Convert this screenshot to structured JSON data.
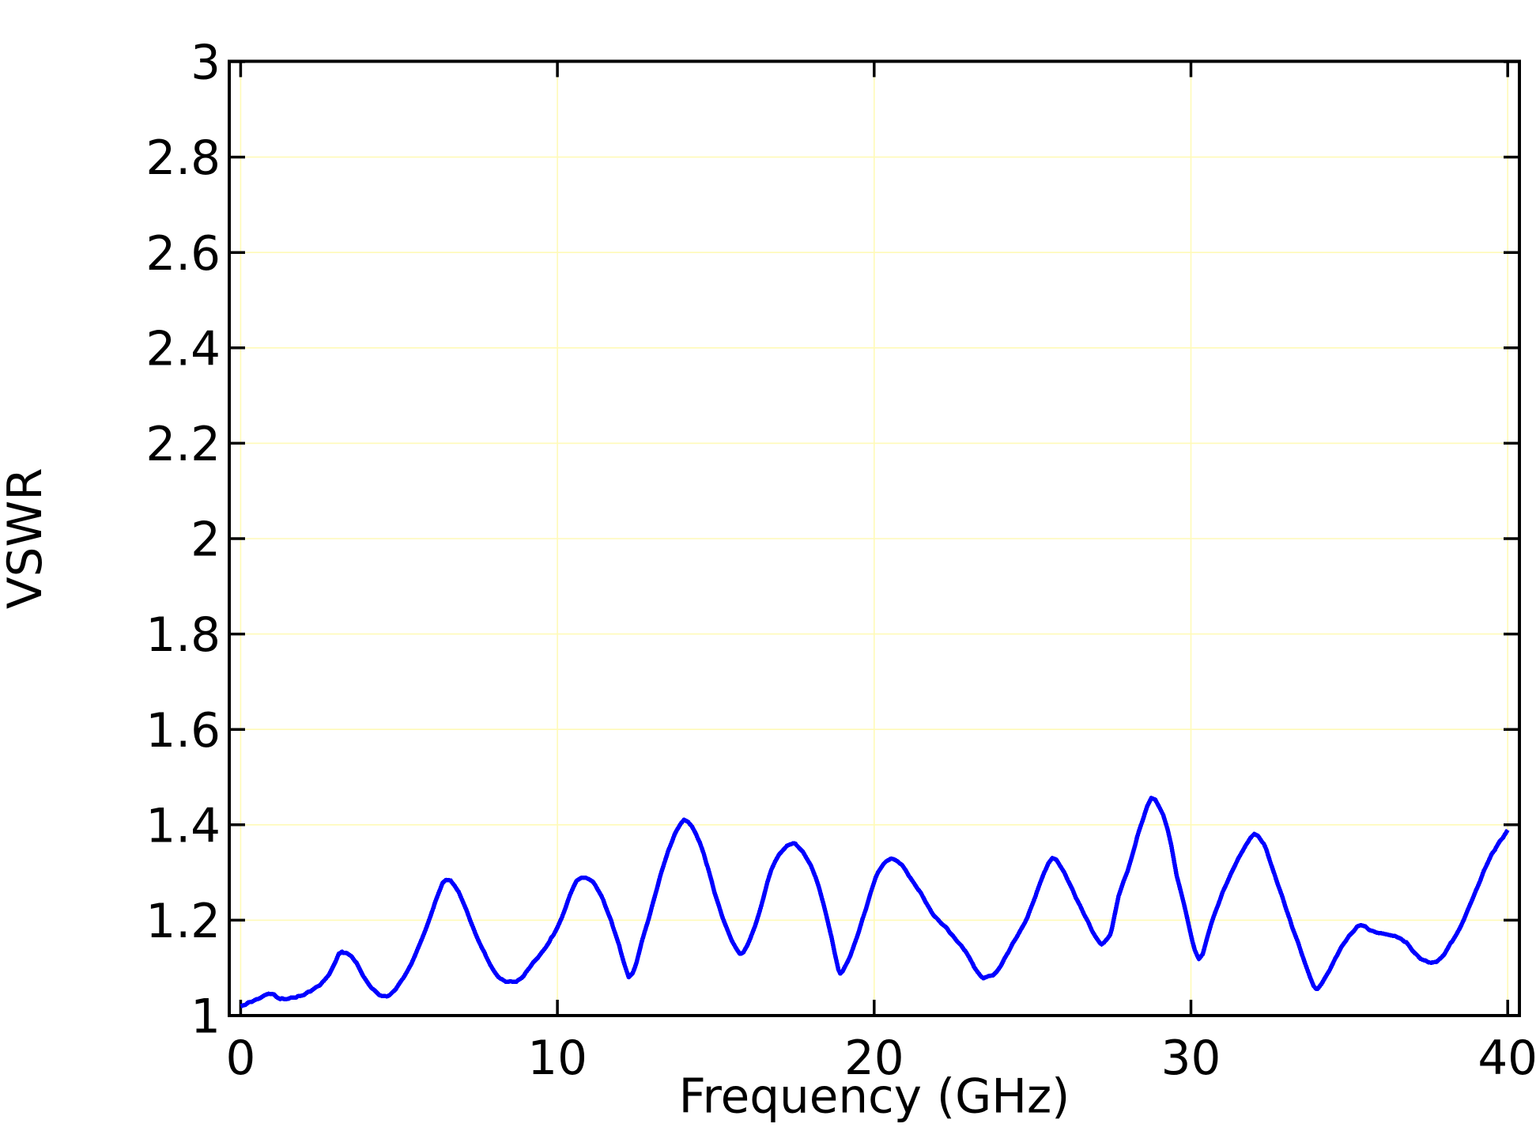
{
  "figure": {
    "kind": "line-chart",
    "background": "#ffffff"
  },
  "chart_data": {
    "type": "line",
    "title": "",
    "xlabel": "Frequency (GHz)",
    "ylabel": "VSWR",
    "x_ticks": [
      0,
      10,
      20,
      30,
      40
    ],
    "y_ticks": [
      1,
      1.2,
      1.4,
      1.6,
      1.8,
      2,
      2.2,
      2.4,
      2.6,
      2.8,
      3
    ],
    "x_tick_labels": [
      "0",
      "10",
      "20",
      "30",
      "40"
    ],
    "y_tick_labels": [
      "1",
      "1.2",
      "1.4",
      "1.6",
      "1.8",
      "2",
      "2.2",
      "2.4",
      "2.6",
      "2.8",
      "3"
    ],
    "xlim": [
      -0.36,
      40.37
    ],
    "ylim": [
      1,
      3
    ],
    "grid": true,
    "legend": false,
    "colors": {
      "line": "#0000ff",
      "grid": "#fffab8",
      "axis": "#000000",
      "text": "#000000"
    },
    "series": [
      {
        "name": "VSWR",
        "x": [
          0.0,
          0.15,
          0.35,
          0.55,
          0.75,
          0.92,
          1.05,
          1.18,
          1.3,
          1.45,
          1.6,
          1.8,
          2.0,
          2.2,
          2.4,
          2.6,
          2.8,
          2.95,
          3.1,
          3.2,
          3.35,
          3.5,
          3.65,
          3.85,
          4.05,
          4.25,
          4.47,
          4.7,
          4.9,
          5.1,
          5.35,
          5.6,
          5.85,
          6.1,
          6.3,
          6.48,
          6.65,
          6.85,
          7.1,
          7.4,
          7.7,
          7.95,
          8.2,
          8.43,
          8.7,
          8.95,
          9.2,
          9.5,
          9.8,
          10.1,
          10.4,
          10.6,
          10.78,
          11.0,
          11.2,
          11.45,
          11.7,
          11.95,
          12.1,
          12.27,
          12.45,
          12.65,
          12.9,
          13.15,
          13.4,
          13.7,
          13.9,
          14.02,
          14.2,
          14.45,
          14.7,
          14.95,
          15.2,
          15.5,
          15.81,
          16.1,
          16.4,
          16.72,
          17.0,
          17.25,
          17.45,
          17.65,
          17.9,
          18.15,
          18.4,
          18.65,
          18.93,
          19.15,
          19.45,
          19.75,
          20.05,
          20.3,
          20.53,
          20.8,
          21.1,
          21.45,
          21.8,
          22.3,
          22.85,
          23.15,
          23.45,
          23.75,
          24.1,
          24.5,
          24.85,
          25.1,
          25.4,
          25.64,
          25.9,
          26.15,
          26.4,
          26.75,
          27.0,
          27.18,
          27.45,
          27.72,
          28.05,
          28.3,
          28.55,
          28.77,
          29.0,
          29.28,
          29.55,
          29.82,
          30.05,
          30.26,
          30.65,
          31.0,
          31.25,
          31.5,
          31.8,
          32.02,
          32.3,
          32.6,
          32.9,
          33.2,
          33.48,
          33.73,
          33.96,
          34.25,
          34.56,
          34.85,
          35.1,
          35.36,
          35.65,
          36.0,
          36.45,
          36.8,
          37.1,
          37.4,
          37.6,
          37.9,
          38.2,
          38.5,
          38.8,
          39.05,
          39.3,
          39.6,
          39.85,
          40.0
        ],
        "y": [
          1.018,
          1.022,
          1.029,
          1.035,
          1.041,
          1.0455,
          1.0435,
          1.038,
          1.0355,
          1.035,
          1.0365,
          1.04,
          1.0445,
          1.051,
          1.059,
          1.071,
          1.088,
          1.105,
          1.129,
          1.1335,
          1.132,
          1.125,
          1.11,
          1.087,
          1.066,
          1.05,
          1.04,
          1.0435,
          1.056,
          1.075,
          1.105,
          1.141,
          1.182,
          1.23,
          1.264,
          1.285,
          1.281,
          1.262,
          1.224,
          1.175,
          1.13,
          1.098,
          1.078,
          1.069,
          1.0715,
          1.085,
          1.107,
          1.133,
          1.16,
          1.2,
          1.252,
          1.28,
          1.29,
          1.287,
          1.272,
          1.242,
          1.198,
          1.146,
          1.112,
          1.081,
          1.101,
          1.15,
          1.208,
          1.268,
          1.325,
          1.38,
          1.403,
          1.41,
          1.401,
          1.37,
          1.32,
          1.262,
          1.208,
          1.158,
          1.13,
          1.163,
          1.222,
          1.298,
          1.337,
          1.355,
          1.36,
          1.352,
          1.328,
          1.29,
          1.235,
          1.165,
          1.089,
          1.112,
          1.163,
          1.228,
          1.29,
          1.318,
          1.33,
          1.32,
          1.293,
          1.258,
          1.219,
          1.181,
          1.137,
          1.103,
          1.079,
          1.084,
          1.118,
          1.165,
          1.208,
          1.251,
          1.305,
          1.33,
          1.312,
          1.281,
          1.243,
          1.198,
          1.163,
          1.15,
          1.172,
          1.25,
          1.315,
          1.374,
          1.424,
          1.459,
          1.438,
          1.386,
          1.296,
          1.222,
          1.156,
          1.119,
          1.194,
          1.258,
          1.293,
          1.329,
          1.363,
          1.38,
          1.36,
          1.302,
          1.246,
          1.185,
          1.133,
          1.086,
          1.054,
          1.082,
          1.12,
          1.154,
          1.176,
          1.189,
          1.18,
          1.172,
          1.168,
          1.152,
          1.13,
          1.113,
          1.11,
          1.121,
          1.15,
          1.186,
          1.23,
          1.27,
          1.311,
          1.348,
          1.374,
          1.388
        ]
      }
    ]
  }
}
